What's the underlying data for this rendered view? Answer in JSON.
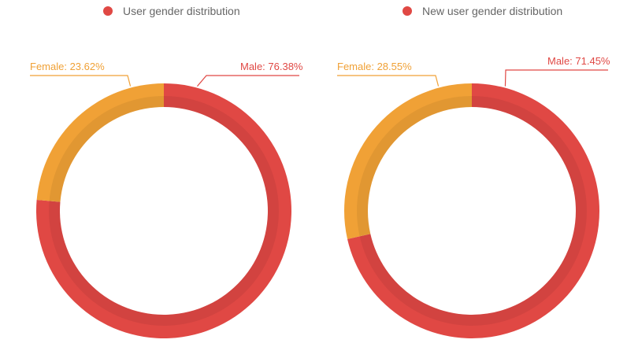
{
  "colors": {
    "male": "#e04844",
    "female": "#f0a136",
    "background": "#ffffff"
  },
  "chart_data": [
    {
      "type": "pie",
      "title": "User gender distribution",
      "categories": [
        "Male",
        "Female"
      ],
      "values": [
        76.38,
        23.62
      ],
      "data_labels": [
        "Male: 76.38%",
        "Female: 23.62%"
      ],
      "legend": "top",
      "legend_icon": "dot-icon",
      "style": "donut"
    },
    {
      "type": "pie",
      "title": "New user gender distribution",
      "categories": [
        "Male",
        "Female"
      ],
      "values": [
        71.45,
        28.55
      ],
      "data_labels": [
        "Male: 71.45%",
        "Female: 28.55%"
      ],
      "legend": "top",
      "legend_icon": "dot-icon",
      "style": "donut"
    }
  ]
}
